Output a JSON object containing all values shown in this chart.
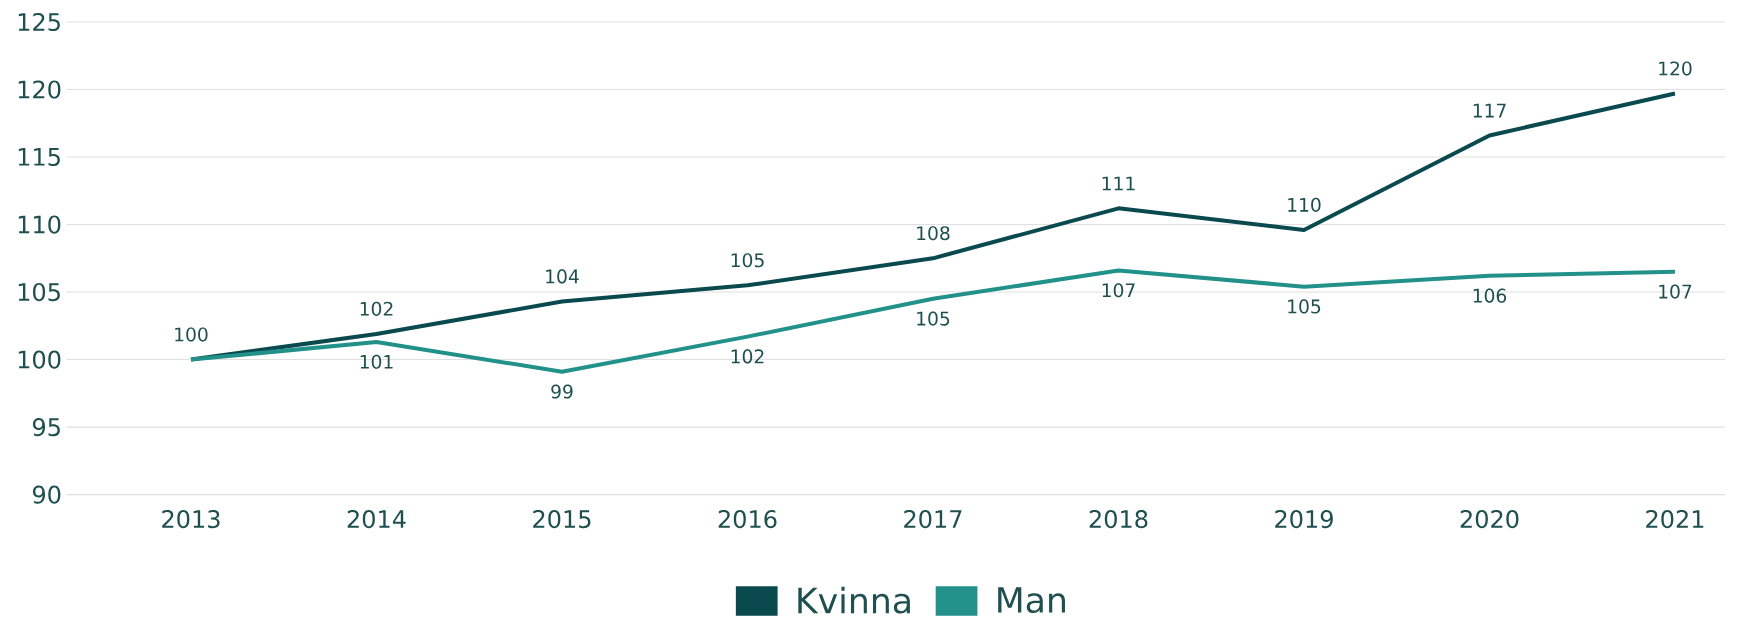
{
  "chart_data": {
    "type": "line",
    "categories": [
      "2013",
      "2014",
      "2015",
      "2016",
      "2017",
      "2018",
      "2019",
      "2020",
      "2021"
    ],
    "series": [
      {
        "name": "Kvinna",
        "color": "#0a4a4f",
        "values": [
          100,
          101.9,
          104.3,
          105.5,
          107.5,
          111.2,
          109.6,
          116.6,
          119.7
        ],
        "value_labels": [
          "100",
          "102",
          "104",
          "105",
          "108",
          "111",
          "110",
          "117",
          "120"
        ]
      },
      {
        "name": "Man",
        "color": "#22918a",
        "values": [
          100,
          101.3,
          99.1,
          101.7,
          104.5,
          106.6,
          105.4,
          106.2,
          106.5
        ],
        "value_labels": [
          null,
          "101",
          "99",
          "102",
          "105",
          "107",
          "105",
          "106",
          "107"
        ]
      }
    ],
    "ylim": [
      90,
      125
    ],
    "yticks": [
      90,
      95,
      100,
      105,
      110,
      115,
      120,
      125
    ],
    "grid": "y",
    "legend": "bottom",
    "marker": "none",
    "line_style": "solid"
  }
}
